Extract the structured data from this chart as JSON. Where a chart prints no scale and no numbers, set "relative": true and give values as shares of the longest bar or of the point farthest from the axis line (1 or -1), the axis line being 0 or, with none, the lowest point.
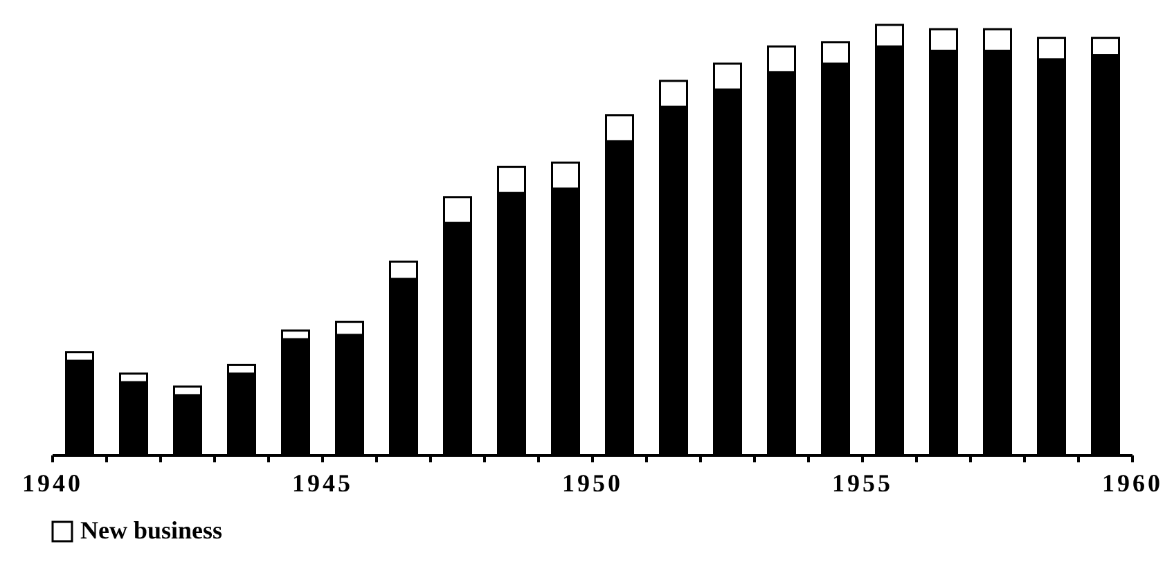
{
  "chart_data": {
    "type": "bar",
    "stacked": true,
    "relative": true,
    "x": [
      1940.5,
      1941.5,
      1942.5,
      1943.5,
      1944.5,
      1945.5,
      1946.5,
      1947.5,
      1948.5,
      1949.5,
      1950.5,
      1951.5,
      1952.5,
      1953.5,
      1954.5,
      1955.5,
      1956.5,
      1957.5,
      1958.5,
      1959.5
    ],
    "xlim": [
      1940,
      1960
    ],
    "xticks": [
      1940,
      {
        "value": 1941,
        "label": null
      },
      {
        "value": 1942,
        "label": null
      },
      {
        "value": 1943,
        "label": null
      },
      {
        "value": 1944,
        "label": null
      },
      1945,
      {
        "value": 1946,
        "label": null
      },
      {
        "value": 1947,
        "label": null
      },
      {
        "value": 1948,
        "label": null
      },
      {
        "value": 1949,
        "label": null
      },
      1950,
      {
        "value": 1951,
        "label": null
      },
      {
        "value": 1952,
        "label": null
      },
      {
        "value": 1953,
        "label": null
      },
      {
        "value": 1954,
        "label": null
      },
      1955,
      {
        "value": 1956,
        "label": null
      },
      {
        "value": 1957,
        "label": null
      },
      {
        "value": 1958,
        "label": null
      },
      {
        "value": 1959,
        "label": null
      },
      1960
    ],
    "series": [
      {
        "color": "#000000",
        "values": [
          0.22,
          0.17,
          0.14,
          0.19,
          0.27,
          0.28,
          0.41,
          0.54,
          0.61,
          0.62,
          0.73,
          0.81,
          0.85,
          0.89,
          0.91,
          0.95,
          0.94,
          0.94,
          0.92,
          0.93
        ]
      },
      {
        "name": "New business",
        "color": "#ffffff",
        "values": [
          0.02,
          0.02,
          0.02,
          0.02,
          0.02,
          0.03,
          0.04,
          0.06,
          0.06,
          0.06,
          0.06,
          0.06,
          0.06,
          0.06,
          0.05,
          0.05,
          0.05,
          0.05,
          0.05,
          0.04
        ]
      }
    ],
    "legend": "bottom left"
  }
}
